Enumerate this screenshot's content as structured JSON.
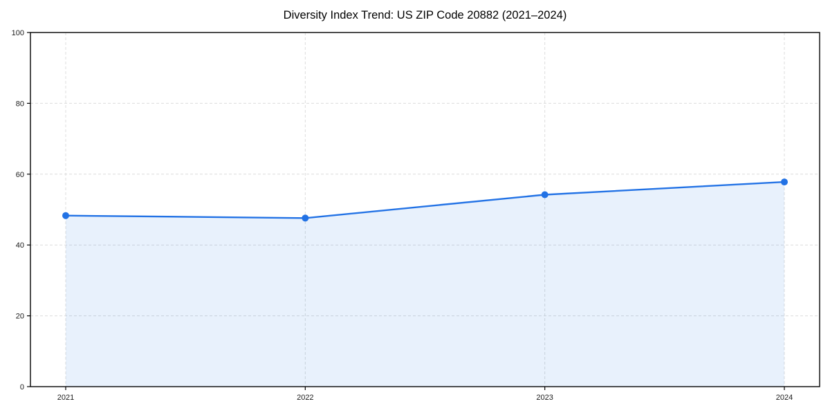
{
  "chart_data": {
    "type": "line",
    "subtype": "area-filled-line-with-markers",
    "title": "Diversity Index Trend: US ZIP Code 20882 (2021–2024)",
    "categories": [
      "2021",
      "2022",
      "2023",
      "2024"
    ],
    "series": [
      {
        "name": "Diversity Index",
        "values": [
          48.3,
          47.6,
          54.2,
          57.8
        ]
      }
    ],
    "xlabel": "",
    "ylabel": "",
    "ylim": [
      0,
      100
    ],
    "yticks": [
      0,
      20,
      40,
      60,
      80,
      100
    ],
    "grid": "dashed horizontal and vertical gridlines",
    "legend_position": "none",
    "colors": {
      "line": "#2272e5",
      "marker": "#2272e5",
      "fill": "#2272e5",
      "fill_opacity": 0.1,
      "gridline": "#dcdcdc",
      "spine": "#000000",
      "tick_label": "#1a1a1a",
      "title": "#000000",
      "background": "#ffffff"
    }
  }
}
